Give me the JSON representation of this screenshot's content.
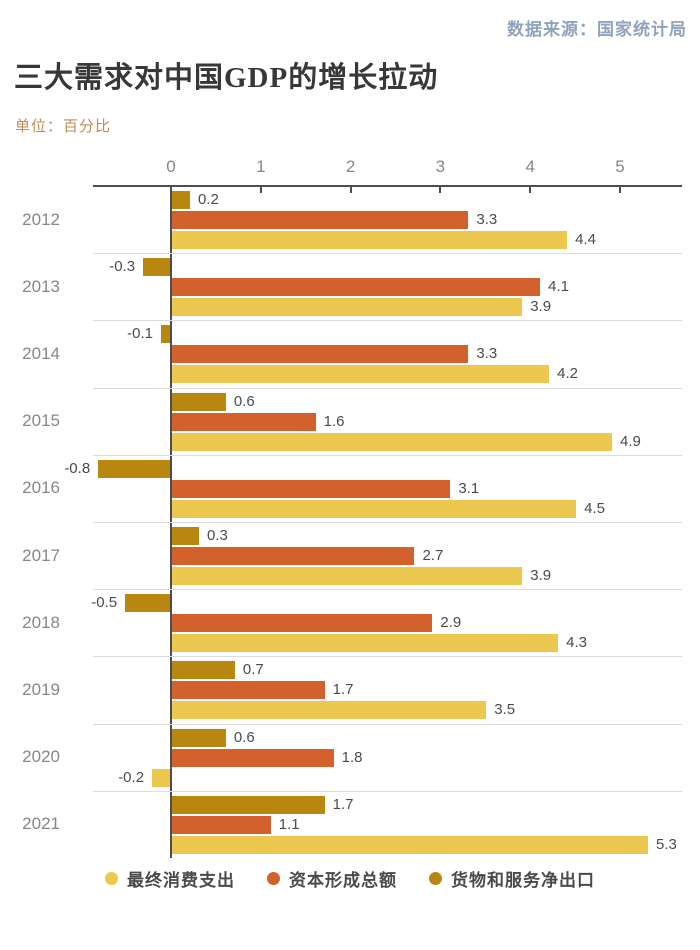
{
  "header": {
    "source": "数据来源：国家统计局",
    "title": "三大需求对中国GDP的增长拉动",
    "unit": "单位：百分比"
  },
  "colors": {
    "source_text": "#90a3bd",
    "title_text": "#383838",
    "unit_text": "#c18a52",
    "axis": "#4d4d4d",
    "separator": "#dcdcdc",
    "year_label": "#878787",
    "value_label": "#4b4b4b",
    "consumption": "#edc851",
    "capital": "#d2612c",
    "net_exports": "#b9870f"
  },
  "chart_data": {
    "type": "bar",
    "orientation": "horizontal",
    "title": "三大需求对中国GDP的增长拉动",
    "unit": "百分比",
    "categories": [
      "2012",
      "2013",
      "2014",
      "2015",
      "2016",
      "2017",
      "2018",
      "2019",
      "2020",
      "2021"
    ],
    "series": [
      {
        "name": "最终消费支出",
        "key": "consumption",
        "color": "#edc851",
        "values": [
          4.4,
          3.9,
          4.2,
          4.9,
          4.5,
          3.9,
          4.3,
          3.5,
          -0.2,
          5.3
        ]
      },
      {
        "name": "资本形成总额",
        "key": "capital",
        "color": "#d2612c",
        "values": [
          3.3,
          4.1,
          3.3,
          1.6,
          3.1,
          2.7,
          2.9,
          1.7,
          1.8,
          1.1
        ]
      },
      {
        "name": "货物和服务净出口",
        "key": "net_exports",
        "color": "#b9870f",
        "values": [
          0.2,
          -0.3,
          -0.1,
          0.6,
          -0.8,
          0.3,
          -0.5,
          0.7,
          0.6,
          1.7
        ]
      }
    ],
    "row_order_top_to_bottom": [
      "货物和服务净出口",
      "资本形成总额",
      "最终消费支出"
    ],
    "x_ticks": [
      "0",
      "1",
      "2",
      "3",
      "4",
      "5"
    ],
    "xlim": [
      -0.9,
      5.8
    ],
    "value_labels": true,
    "grid": false,
    "legend_position": "bottom"
  }
}
